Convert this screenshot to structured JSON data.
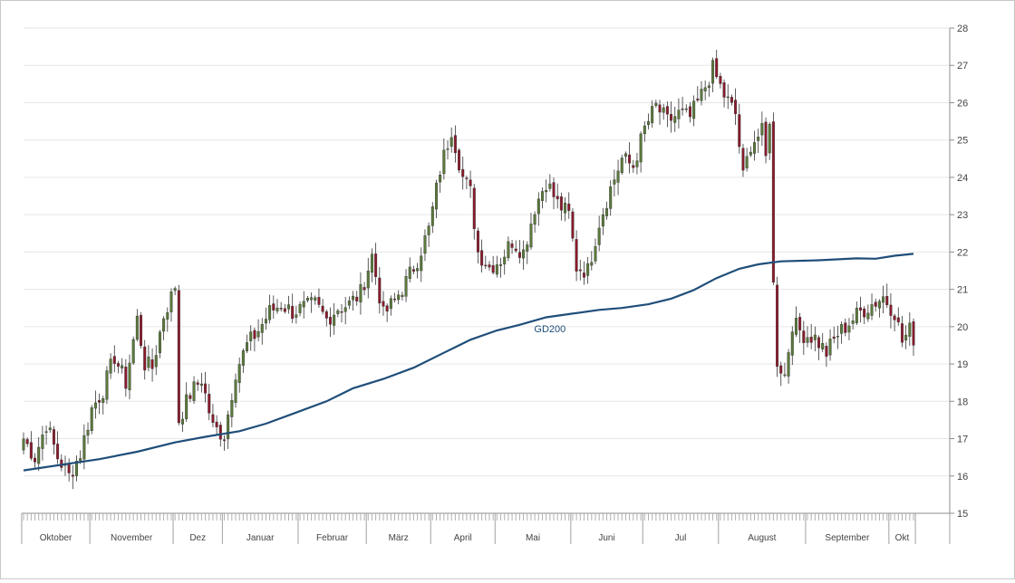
{
  "chart_data": {
    "type": "candlestick",
    "title": "",
    "xlabel": "",
    "ylabel": "",
    "ylim": [
      15,
      28
    ],
    "y_ticks": [
      15,
      16,
      17,
      18,
      19,
      20,
      21,
      22,
      23,
      24,
      25,
      26,
      27,
      28
    ],
    "y_axis_side": "right",
    "grid": "horizontal",
    "months": [
      "Oktober",
      "November",
      "Dez",
      "Januar",
      "Februar",
      "März",
      "April",
      "Mai",
      "Juni",
      "Jul",
      "August",
      "September",
      "Okt"
    ],
    "month_start_index": [
      0,
      18,
      40,
      53,
      73,
      91,
      108,
      125,
      145,
      164,
      184,
      207,
      229
    ],
    "n_days": 236,
    "up_color": "#5a7a3a",
    "down_color": "#8b1a2b",
    "ma_color": "#1f4e79",
    "close_anchors": [
      [
        0,
        17.0
      ],
      [
        3,
        16.5
      ],
      [
        6,
        17.4
      ],
      [
        9,
        16.5
      ],
      [
        12,
        16.0
      ],
      [
        15,
        16.6
      ],
      [
        18,
        17.8
      ],
      [
        21,
        18.3
      ],
      [
        24,
        19.2
      ],
      [
        27,
        18.5
      ],
      [
        30,
        20.2
      ],
      [
        32,
        19.0
      ],
      [
        34,
        18.9
      ],
      [
        37,
        20.3
      ],
      [
        39,
        20.8
      ],
      [
        40,
        21.1
      ],
      [
        41,
        17.5
      ],
      [
        44,
        18.2
      ],
      [
        47,
        18.6
      ],
      [
        50,
        17.3
      ],
      [
        53,
        17.1
      ],
      [
        56,
        18.8
      ],
      [
        59,
        19.5
      ],
      [
        62,
        19.9
      ],
      [
        65,
        20.4
      ],
      [
        68,
        20.6
      ],
      [
        71,
        20.4
      ],
      [
        74,
        20.5
      ],
      [
        77,
        20.6
      ],
      [
        80,
        20.2
      ],
      [
        83,
        20.5
      ],
      [
        86,
        20.6
      ],
      [
        89,
        20.9
      ],
      [
        92,
        21.9
      ],
      [
        95,
        20.3
      ],
      [
        98,
        20.7
      ],
      [
        101,
        21.2
      ],
      [
        104,
        21.8
      ],
      [
        107,
        22.6
      ],
      [
        110,
        24.2
      ],
      [
        113,
        25.3
      ],
      [
        116,
        24.0
      ],
      [
        118,
        23.6
      ],
      [
        120,
        22.0
      ],
      [
        123,
        21.6
      ],
      [
        126,
        21.8
      ],
      [
        129,
        22.3
      ],
      [
        132,
        22.0
      ],
      [
        135,
        23.2
      ],
      [
        138,
        23.9
      ],
      [
        141,
        23.3
      ],
      [
        144,
        23.0
      ],
      [
        146,
        21.6
      ],
      [
        149,
        21.5
      ],
      [
        152,
        22.8
      ],
      [
        155,
        23.7
      ],
      [
        158,
        24.5
      ],
      [
        161,
        24.3
      ],
      [
        164,
        25.3
      ],
      [
        167,
        25.9
      ],
      [
        170,
        25.5
      ],
      [
        173,
        25.7
      ],
      [
        176,
        25.6
      ],
      [
        179,
        26.2
      ],
      [
        182,
        26.9
      ],
      [
        185,
        26.2
      ],
      [
        188,
        25.7
      ],
      [
        190,
        24.0
      ],
      [
        192,
        24.9
      ],
      [
        195,
        25.2
      ],
      [
        196,
        24.5
      ],
      [
        197,
        25.6
      ],
      [
        198,
        21.1
      ],
      [
        199,
        19.1
      ],
      [
        201,
        18.7
      ],
      [
        203,
        20.1
      ],
      [
        206,
        19.8
      ],
      [
        209,
        19.7
      ],
      [
        212,
        19.3
      ],
      [
        215,
        19.8
      ],
      [
        218,
        20.1
      ],
      [
        221,
        20.4
      ],
      [
        224,
        20.6
      ],
      [
        227,
        20.8
      ],
      [
        230,
        20.4
      ],
      [
        232,
        19.6
      ],
      [
        234,
        19.9
      ],
      [
        235,
        19.7
      ]
    ],
    "series": [
      {
        "name": "GD200",
        "type": "line",
        "points": [
          [
            0,
            16.15
          ],
          [
            20,
            16.45
          ],
          [
            30,
            16.65
          ],
          [
            40,
            16.9
          ],
          [
            48,
            17.05
          ],
          [
            57,
            17.2
          ],
          [
            64,
            17.4
          ],
          [
            72,
            17.7
          ],
          [
            80,
            18.0
          ],
          [
            87,
            18.35
          ],
          [
            95,
            18.6
          ],
          [
            103,
            18.9
          ],
          [
            111,
            19.3
          ],
          [
            118,
            19.65
          ],
          [
            125,
            19.9
          ],
          [
            131,
            20.05
          ],
          [
            138,
            20.25
          ],
          [
            145,
            20.35
          ],
          [
            152,
            20.45
          ],
          [
            158,
            20.5
          ],
          [
            165,
            20.6
          ],
          [
            171,
            20.75
          ],
          [
            177,
            20.98
          ],
          [
            183,
            21.3
          ],
          [
            189,
            21.55
          ],
          [
            194,
            21.67
          ],
          [
            200,
            21.75
          ],
          [
            210,
            21.78
          ],
          [
            220,
            21.83
          ],
          [
            225,
            21.82
          ],
          [
            230,
            21.9
          ],
          [
            235,
            21.95
          ]
        ]
      }
    ],
    "annotations": [
      {
        "text": "GD200",
        "x": 139,
        "y": 19.85
      }
    ]
  }
}
